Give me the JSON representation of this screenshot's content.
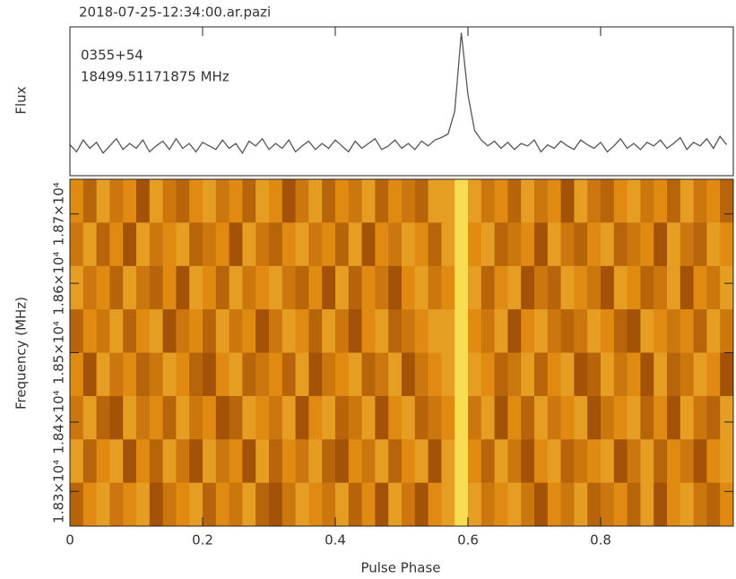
{
  "chart_data": [
    {
      "type": "line",
      "title": "2018-07-25-12:34:00.ar.pazi",
      "ylabel": "Flux",
      "annotations": [
        "0355+54",
        "18499.51171875 MHz"
      ],
      "color": "#555555",
      "xlim": [
        0,
        1
      ],
      "ylim": [
        -0.2,
        1.05
      ],
      "x": [
        0,
        0.01,
        0.02,
        0.03,
        0.04,
        0.05,
        0.06,
        0.07,
        0.08,
        0.09,
        0.1,
        0.11,
        0.12,
        0.13,
        0.14,
        0.15,
        0.16,
        0.17,
        0.18,
        0.19,
        0.2,
        0.21,
        0.22,
        0.23,
        0.24,
        0.25,
        0.26,
        0.27,
        0.28,
        0.29,
        0.3,
        0.31,
        0.32,
        0.33,
        0.34,
        0.35,
        0.36,
        0.37,
        0.38,
        0.39,
        0.4,
        0.41,
        0.42,
        0.43,
        0.44,
        0.45,
        0.46,
        0.47,
        0.48,
        0.49,
        0.5,
        0.51,
        0.52,
        0.53,
        0.54,
        0.55,
        0.56,
        0.57,
        0.58,
        0.59,
        0.6,
        0.61,
        0.62,
        0.63,
        0.64,
        0.65,
        0.66,
        0.67,
        0.68,
        0.69,
        0.7,
        0.71,
        0.72,
        0.73,
        0.74,
        0.75,
        0.76,
        0.77,
        0.78,
        0.79,
        0.8,
        0.81,
        0.82,
        0.83,
        0.84,
        0.85,
        0.86,
        0.87,
        0.88,
        0.89,
        0.9,
        0.91,
        0.92,
        0.93,
        0.94,
        0.95,
        0.96,
        0.97,
        0.98,
        0.99
      ],
      "values": [
        0.06,
        0.0,
        0.1,
        0.03,
        0.08,
        -0.01,
        0.05,
        0.11,
        0.02,
        0.07,
        0.03,
        0.1,
        0.0,
        0.05,
        0.09,
        0.02,
        0.11,
        0.03,
        0.07,
        0.0,
        0.08,
        0.05,
        0.02,
        0.1,
        0.03,
        0.07,
        -0.01,
        0.09,
        0.05,
        0.11,
        0.02,
        0.07,
        0.03,
        0.1,
        0.0,
        0.05,
        0.09,
        0.02,
        0.07,
        0.03,
        0.1,
        0.05,
        0.0,
        0.09,
        0.03,
        0.07,
        0.11,
        0.02,
        0.05,
        0.1,
        0.03,
        0.07,
        0.02,
        0.09,
        0.05,
        0.1,
        0.12,
        0.15,
        0.34,
        1.0,
        0.48,
        0.18,
        0.1,
        0.05,
        0.09,
        0.03,
        0.08,
        0.02,
        0.07,
        0.05,
        0.1,
        0.0,
        0.06,
        0.03,
        0.09,
        0.05,
        0.02,
        0.1,
        0.06,
        0.03,
        0.08,
        0.0,
        0.05,
        0.11,
        0.03,
        0.07,
        0.02,
        0.08,
        0.05,
        0.1,
        0.03,
        0.07,
        0.12,
        0.02,
        0.08,
        0.05,
        0.11,
        0.03,
        0.13,
        0.06
      ]
    },
    {
      "type": "heatmap",
      "xlabel": "Pulse Phase",
      "ylabel": "Frequency (MHz)",
      "colormap": [
        "#7a2c00",
        "#e08a12",
        "#fff060"
      ],
      "xlim": [
        0,
        1
      ],
      "ylim": [
        18250,
        18750
      ],
      "xticks": [
        0,
        0.2,
        0.4,
        0.6,
        0.8
      ],
      "yticks": [
        {
          "value": 18300,
          "label": "1.83×10⁴"
        },
        {
          "value": 18400,
          "label": "1.84×10⁴"
        },
        {
          "value": 18500,
          "label": "1.85×10⁴"
        },
        {
          "value": 18600,
          "label": "1.86×10⁴"
        },
        {
          "value": 18700,
          "label": "1.87×10⁴"
        }
      ],
      "z": [
        [
          0.5,
          0.3,
          0.6,
          0.4,
          0.5,
          0.2,
          0.6,
          0.4,
          0.3,
          0.5,
          0.6,
          0.4,
          0.5,
          0.3,
          0.6,
          0.5,
          0.2,
          0.4,
          0.6,
          0.3,
          0.5,
          0.4,
          0.6,
          0.3,
          0.5,
          0.4,
          0.3,
          0.6,
          0.6,
          0.9,
          0.6,
          0.4,
          0.5,
          0.3,
          0.6,
          0.4,
          0.5,
          0.2,
          0.6,
          0.4,
          0.3,
          0.5,
          0.6,
          0.4,
          0.5,
          0.3,
          0.6,
          0.4,
          0.5,
          0.3
        ],
        [
          0.4,
          0.6,
          0.3,
          0.5,
          0.2,
          0.6,
          0.4,
          0.5,
          0.6,
          0.3,
          0.4,
          0.5,
          0.2,
          0.6,
          0.4,
          0.3,
          0.5,
          0.6,
          0.4,
          0.5,
          0.3,
          0.6,
          0.2,
          0.5,
          0.4,
          0.6,
          0.5,
          0.3,
          0.6,
          0.9,
          0.5,
          0.6,
          0.3,
          0.4,
          0.5,
          0.2,
          0.6,
          0.4,
          0.3,
          0.5,
          0.6,
          0.3,
          0.4,
          0.5,
          0.2,
          0.6,
          0.4,
          0.3,
          0.6,
          0.5
        ],
        [
          0.6,
          0.4,
          0.5,
          0.3,
          0.6,
          0.4,
          0.3,
          0.5,
          0.2,
          0.6,
          0.5,
          0.3,
          0.6,
          0.4,
          0.5,
          0.6,
          0.4,
          0.3,
          0.5,
          0.2,
          0.6,
          0.3,
          0.5,
          0.4,
          0.2,
          0.5,
          0.6,
          0.4,
          0.5,
          0.9,
          0.6,
          0.3,
          0.5,
          0.6,
          0.2,
          0.4,
          0.3,
          0.6,
          0.5,
          0.4,
          0.2,
          0.6,
          0.5,
          0.3,
          0.4,
          0.6,
          0.2,
          0.5,
          0.4,
          0.6
        ],
        [
          0.3,
          0.5,
          0.4,
          0.6,
          0.3,
          0.5,
          0.6,
          0.2,
          0.4,
          0.5,
          0.3,
          0.6,
          0.4,
          0.5,
          0.2,
          0.4,
          0.6,
          0.5,
          0.3,
          0.6,
          0.4,
          0.2,
          0.5,
          0.6,
          0.3,
          0.4,
          0.5,
          0.6,
          0.6,
          0.9,
          0.5,
          0.4,
          0.6,
          0.2,
          0.5,
          0.6,
          0.4,
          0.3,
          0.4,
          0.6,
          0.5,
          0.3,
          0.2,
          0.6,
          0.5,
          0.4,
          0.5,
          0.3,
          0.6,
          0.4
        ],
        [
          0.5,
          0.2,
          0.6,
          0.4,
          0.5,
          0.3,
          0.4,
          0.6,
          0.5,
          0.3,
          0.2,
          0.5,
          0.6,
          0.3,
          0.4,
          0.5,
          0.3,
          0.6,
          0.2,
          0.4,
          0.5,
          0.6,
          0.3,
          0.4,
          0.6,
          0.2,
          0.4,
          0.5,
          0.6,
          0.9,
          0.6,
          0.5,
          0.3,
          0.4,
          0.6,
          0.3,
          0.5,
          0.6,
          0.2,
          0.3,
          0.6,
          0.4,
          0.5,
          0.2,
          0.6,
          0.3,
          0.4,
          0.6,
          0.5,
          0.2
        ],
        [
          0.4,
          0.6,
          0.3,
          0.2,
          0.6,
          0.4,
          0.5,
          0.3,
          0.6,
          0.4,
          0.5,
          0.2,
          0.3,
          0.6,
          0.5,
          0.4,
          0.6,
          0.2,
          0.5,
          0.6,
          0.3,
          0.4,
          0.6,
          0.2,
          0.5,
          0.6,
          0.3,
          0.4,
          0.5,
          0.9,
          0.4,
          0.6,
          0.2,
          0.5,
          0.3,
          0.6,
          0.4,
          0.5,
          0.6,
          0.2,
          0.4,
          0.5,
          0.6,
          0.3,
          0.5,
          0.2,
          0.6,
          0.4,
          0.3,
          0.6
        ],
        [
          0.6,
          0.3,
          0.5,
          0.6,
          0.2,
          0.5,
          0.3,
          0.6,
          0.4,
          0.2,
          0.6,
          0.4,
          0.5,
          0.2,
          0.6,
          0.3,
          0.5,
          0.4,
          0.6,
          0.3,
          0.2,
          0.5,
          0.4,
          0.6,
          0.3,
          0.5,
          0.6,
          0.2,
          0.6,
          0.9,
          0.5,
          0.3,
          0.6,
          0.4,
          0.2,
          0.5,
          0.6,
          0.3,
          0.4,
          0.5,
          0.6,
          0.2,
          0.4,
          0.6,
          0.3,
          0.5,
          0.4,
          0.2,
          0.5,
          0.6
        ],
        [
          0.3,
          0.5,
          0.6,
          0.4,
          0.5,
          0.6,
          0.2,
          0.4,
          0.5,
          0.6,
          0.3,
          0.5,
          0.4,
          0.6,
          0.3,
          0.2,
          0.4,
          0.6,
          0.5,
          0.4,
          0.6,
          0.3,
          0.5,
          0.2,
          0.6,
          0.4,
          0.2,
          0.5,
          0.6,
          0.9,
          0.6,
          0.4,
          0.5,
          0.6,
          0.4,
          0.2,
          0.5,
          0.4,
          0.6,
          0.3,
          0.4,
          0.5,
          0.3,
          0.6,
          0.2,
          0.5,
          0.6,
          0.4,
          0.3,
          0.5
        ]
      ]
    }
  ]
}
